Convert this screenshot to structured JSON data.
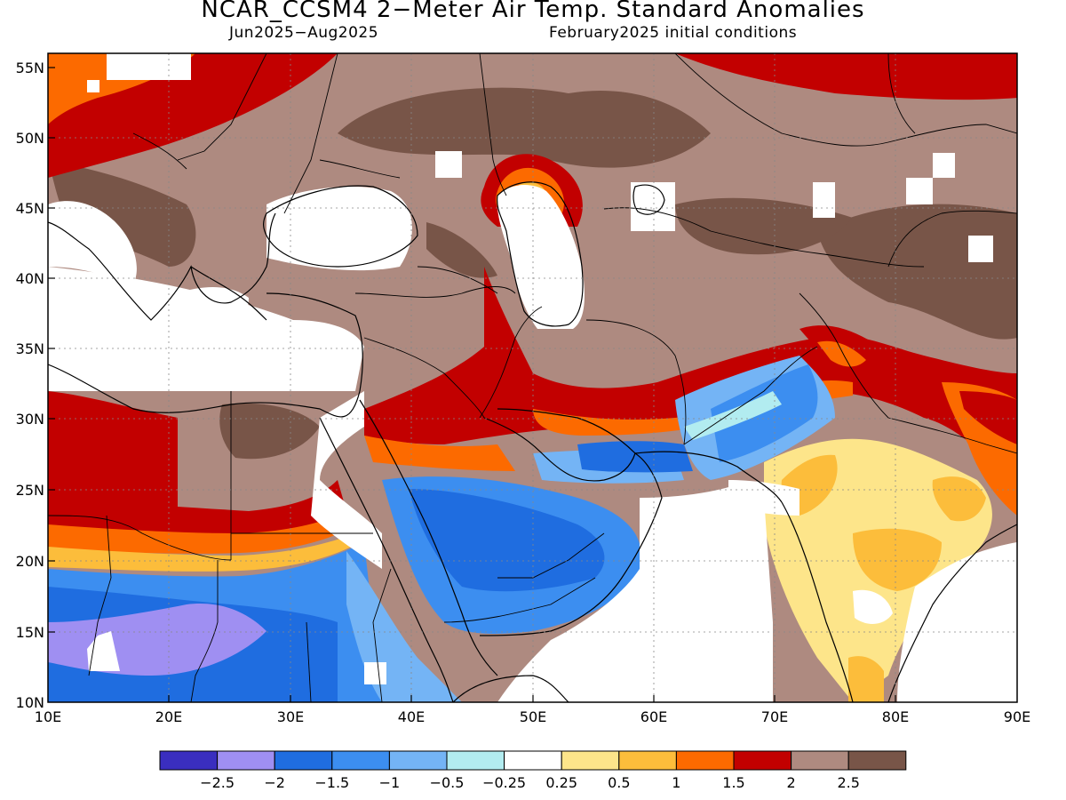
{
  "title": "NCAR_CCSM4 2−Meter Air Temp. Standard Anomalies",
  "subtitle_left": "Jun2025−Aug2025",
  "subtitle_right": "February2025 initial conditions",
  "lat_labels": [
    "55N",
    "50N",
    "45N",
    "40N",
    "35N",
    "30N",
    "25N",
    "20N",
    "15N",
    "10N"
  ],
  "lon_labels": [
    "10E",
    "20E",
    "30E",
    "40E",
    "50E",
    "60E",
    "70E",
    "80E",
    "90E"
  ],
  "colorbar": {
    "colors": [
      "#3a2ebf",
      "#9f8ff2",
      "#1f6de0",
      "#3c8ef0",
      "#74b4f5",
      "#b2ecf0",
      "#ffffff",
      "#fde58a",
      "#fcbd3b",
      "#fc6a00",
      "#c20000",
      "#ae8a80",
      "#785548"
    ],
    "labels": [
      "−2.5",
      "−2",
      "−1.5",
      "−1",
      "−0.5",
      "−0.25",
      "0.25",
      "0.5",
      "1",
      "1.5",
      "2",
      "2.5"
    ]
  }
}
